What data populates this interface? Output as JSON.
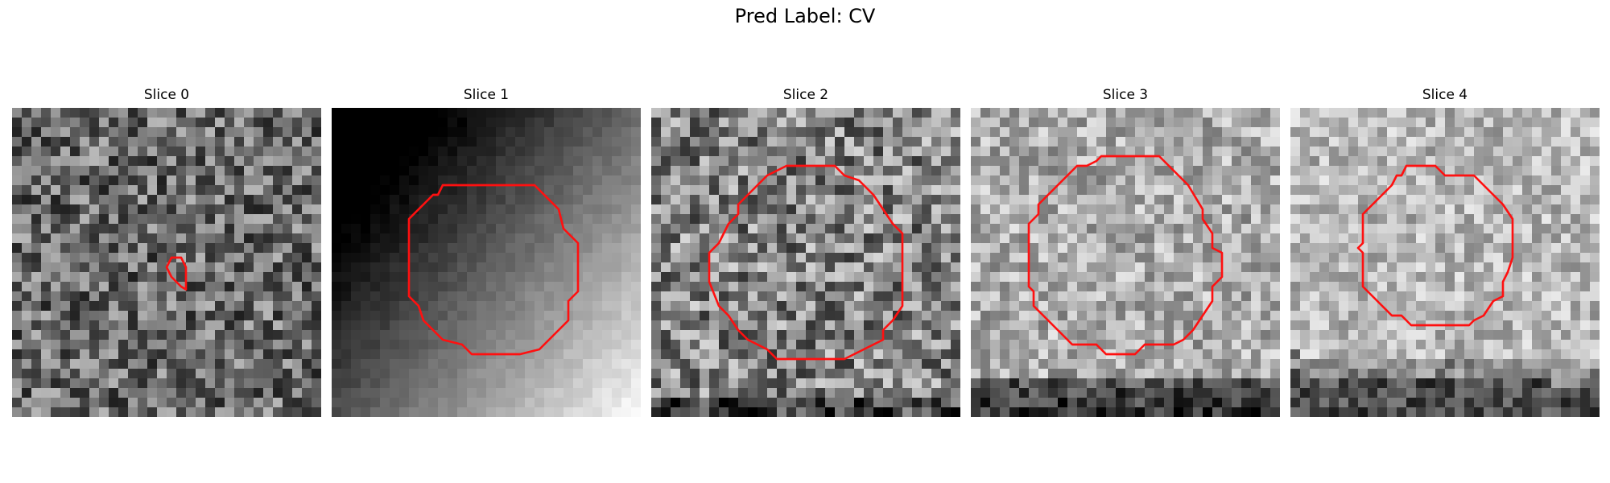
{
  "figure": {
    "title": "Pred Label: CV"
  },
  "colors": {
    "contour": "#ff1010"
  },
  "grid": {
    "size": 32
  },
  "slices": [
    {
      "title": "Slice 0",
      "pattern": "noise-dark",
      "contour": [
        [
          16.5,
          15.5
        ],
        [
          17.5,
          15.5
        ],
        [
          18,
          16.5
        ],
        [
          18,
          18.5
        ],
        [
          18,
          18.8
        ],
        [
          17.5,
          18.5
        ],
        [
          16.5,
          17.5
        ],
        [
          16,
          16.5
        ]
      ]
    },
    {
      "title": "Slice 1",
      "pattern": "gradient-dark-topleft",
      "contour": [
        [
          11.5,
          8
        ],
        [
          21,
          8
        ],
        [
          23.5,
          10.5
        ],
        [
          24,
          12.5
        ],
        [
          25.5,
          14
        ],
        [
          25.5,
          19
        ],
        [
          24.5,
          20
        ],
        [
          24.5,
          22
        ],
        [
          22.5,
          24
        ],
        [
          21.5,
          25
        ],
        [
          19.5,
          25.5
        ],
        [
          14.5,
          25.5
        ],
        [
          13.5,
          24.5
        ],
        [
          11.5,
          24
        ],
        [
          9.5,
          22
        ],
        [
          9,
          20.5
        ],
        [
          8,
          19.5
        ],
        [
          8,
          11.5
        ],
        [
          9.5,
          10
        ],
        [
          10.5,
          9
        ],
        [
          11,
          9
        ]
      ]
    },
    {
      "title": "Slice 2",
      "pattern": "noise-mid",
      "contour": [
        [
          14,
          6
        ],
        [
          19,
          6
        ],
        [
          20,
          7
        ],
        [
          21.5,
          7.5
        ],
        [
          23,
          9
        ],
        [
          24,
          10.5
        ],
        [
          25,
          12
        ],
        [
          26,
          13
        ],
        [
          26,
          20.5
        ],
        [
          25,
          22
        ],
        [
          24,
          23
        ],
        [
          24,
          24
        ],
        [
          22,
          25
        ],
        [
          20,
          26
        ],
        [
          13,
          26
        ],
        [
          12,
          25
        ],
        [
          10,
          24
        ],
        [
          9,
          23
        ],
        [
          8,
          21.5
        ],
        [
          7,
          20.5
        ],
        [
          6,
          18
        ],
        [
          6,
          15
        ],
        [
          7,
          14
        ],
        [
          8,
          12
        ],
        [
          9,
          11
        ],
        [
          9,
          10
        ],
        [
          10,
          9
        ],
        [
          11,
          8
        ],
        [
          12,
          7
        ],
        [
          13,
          6.5
        ]
      ]
    },
    {
      "title": "Slice 3",
      "pattern": "noise-light",
      "contour": [
        [
          13.5,
          5
        ],
        [
          19.5,
          5
        ],
        [
          20.5,
          6
        ],
        [
          21.5,
          7
        ],
        [
          22.5,
          8
        ],
        [
          24,
          10.5
        ],
        [
          24,
          11.5
        ],
        [
          25,
          13
        ],
        [
          25,
          14.5
        ],
        [
          26,
          15
        ],
        [
          26,
          17.5
        ],
        [
          25,
          18.5
        ],
        [
          25,
          20
        ],
        [
          24,
          21.5
        ],
        [
          23,
          23
        ],
        [
          22,
          24
        ],
        [
          21,
          24.5
        ],
        [
          18,
          24.5
        ],
        [
          17,
          25.5
        ],
        [
          14,
          25.5
        ],
        [
          13,
          24.5
        ],
        [
          10.5,
          24.5
        ],
        [
          9.5,
          23.5
        ],
        [
          8.5,
          22.5
        ],
        [
          7.5,
          21.5
        ],
        [
          6.5,
          20.5
        ],
        [
          6.5,
          19
        ],
        [
          6,
          18.5
        ],
        [
          6,
          12
        ],
        [
          7,
          11
        ],
        [
          7,
          10
        ],
        [
          8,
          9
        ],
        [
          9,
          8
        ],
        [
          10,
          7
        ],
        [
          11,
          6
        ],
        [
          12,
          6
        ],
        [
          13,
          5.5
        ]
      ]
    },
    {
      "title": "Slice 4",
      "pattern": "noise-light-bottomdark",
      "contour": [
        [
          12,
          6
        ],
        [
          15,
          6
        ],
        [
          16,
          7
        ],
        [
          19,
          7
        ],
        [
          20,
          8
        ],
        [
          21,
          9
        ],
        [
          22,
          10
        ],
        [
          23,
          11.5
        ],
        [
          23,
          15.5
        ],
        [
          22.5,
          17
        ],
        [
          22,
          18
        ],
        [
          22,
          19.5
        ],
        [
          21,
          20
        ],
        [
          20,
          21.5
        ],
        [
          19,
          22
        ],
        [
          18.5,
          22.5
        ],
        [
          12.5,
          22.5
        ],
        [
          11.5,
          21.5
        ],
        [
          10.5,
          21.5
        ],
        [
          9.5,
          20.5
        ],
        [
          8.5,
          19.5
        ],
        [
          7.5,
          18.5
        ],
        [
          7.5,
          15
        ],
        [
          7,
          14.5
        ],
        [
          7.5,
          14
        ],
        [
          7.5,
          11
        ],
        [
          8.5,
          10
        ],
        [
          9.5,
          9
        ],
        [
          10.5,
          8
        ],
        [
          11,
          7
        ],
        [
          11.5,
          7
        ]
      ]
    }
  ]
}
